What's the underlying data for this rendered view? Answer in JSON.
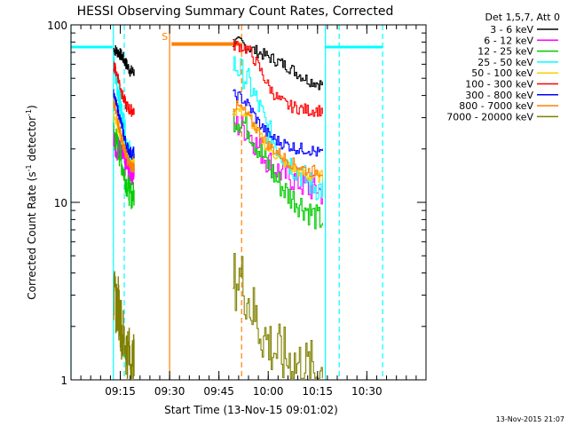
{
  "chart_data": {
    "type": "line",
    "title": "HESSI Observing Summary Count Rates, Corrected",
    "xlabel": "Start Time (13-Nov-15 09:01:02)",
    "ylabel_main": "Corrected Count Rate (s",
    "ylabel_sup1": "-1",
    "ylabel_mid": " detector",
    "ylabel_sup2": "-1",
    "ylabel_end": ")",
    "y_scale": "log",
    "ylim": [
      1,
      100
    ],
    "xlim_minutes": [
      9.0,
      10.8
    ],
    "x_ticks": [
      {
        "label": "09:15",
        "value": 9.25
      },
      {
        "label": "09:30",
        "value": 9.5
      },
      {
        "label": "09:45",
        "value": 9.75
      },
      {
        "label": "10:00",
        "value": 10.0
      },
      {
        "label": "10:15",
        "value": 10.25
      },
      {
        "label": "10:30",
        "value": 10.5
      }
    ],
    "y_ticks": [
      {
        "label": "1",
        "value": 1
      },
      {
        "label": "10",
        "value": 10
      },
      {
        "label": "100",
        "value": 100
      }
    ],
    "legend_header": "Det 1,5,7, Att 0",
    "legend_position": "outside-right",
    "series": [
      {
        "name": "3 - 6 keV",
        "color": "#000000",
        "seg1": [
          [
            9.215,
            73
          ],
          [
            9.24,
            70
          ],
          [
            9.26,
            66
          ],
          [
            9.28,
            60
          ],
          [
            9.3,
            55
          ],
          [
            9.32,
            54
          ]
        ],
        "seg2": [
          [
            9.82,
            80
          ],
          [
            9.86,
            79
          ],
          [
            9.9,
            74
          ],
          [
            9.95,
            70
          ],
          [
            10.0,
            66
          ],
          [
            10.05,
            62
          ],
          [
            10.1,
            58
          ],
          [
            10.15,
            53
          ],
          [
            10.2,
            49
          ],
          [
            10.25,
            47
          ],
          [
            10.275,
            46
          ]
        ]
      },
      {
        "name": "6 - 12 keV",
        "color": "#ff00ff",
        "seg1": [
          [
            9.215,
            22
          ],
          [
            9.24,
            20
          ],
          [
            9.26,
            18
          ],
          [
            9.28,
            16
          ],
          [
            9.3,
            15
          ],
          [
            9.32,
            15
          ]
        ],
        "seg2": [
          [
            9.82,
            27
          ],
          [
            9.86,
            27
          ],
          [
            9.9,
            25
          ],
          [
            9.95,
            20
          ],
          [
            10.0,
            17
          ],
          [
            10.05,
            15
          ],
          [
            10.1,
            14
          ],
          [
            10.15,
            13
          ],
          [
            10.2,
            12
          ],
          [
            10.25,
            12
          ],
          [
            10.275,
            11
          ]
        ]
      },
      {
        "name": "12 - 25 keV",
        "color": "#00cc00",
        "seg1": [
          [
            9.215,
            25
          ],
          [
            9.24,
            20
          ],
          [
            9.26,
            16
          ],
          [
            9.28,
            13
          ],
          [
            9.3,
            11
          ],
          [
            9.32,
            11
          ]
        ],
        "seg2": [
          [
            9.82,
            30
          ],
          [
            9.86,
            29
          ],
          [
            9.9,
            26
          ],
          [
            9.95,
            20
          ],
          [
            10.0,
            16
          ],
          [
            10.05,
            13
          ],
          [
            10.1,
            11
          ],
          [
            10.15,
            10
          ],
          [
            10.2,
            9
          ],
          [
            10.25,
            8
          ],
          [
            10.275,
            8
          ]
        ]
      },
      {
        "name": "25 - 50 keV",
        "color": "#00ffff",
        "seg1": [
          [
            9.215,
            60
          ],
          [
            9.24,
            42
          ],
          [
            9.26,
            30
          ],
          [
            9.28,
            22
          ],
          [
            9.3,
            18
          ],
          [
            9.32,
            17
          ]
        ],
        "seg2": [
          [
            9.82,
            60
          ],
          [
            9.86,
            55
          ],
          [
            9.9,
            47
          ],
          [
            9.95,
            35
          ],
          [
            10.0,
            25
          ],
          [
            10.05,
            20
          ],
          [
            10.1,
            17
          ],
          [
            10.15,
            15
          ],
          [
            10.2,
            13
          ],
          [
            10.25,
            12
          ],
          [
            10.275,
            12
          ]
        ]
      },
      {
        "name": "50 - 100 keV",
        "color": "#ffcc00",
        "seg1": [
          [
            9.215,
            30
          ],
          [
            9.24,
            26
          ],
          [
            9.26,
            22
          ],
          [
            9.28,
            19
          ],
          [
            9.3,
            17
          ],
          [
            9.32,
            17
          ]
        ],
        "seg2": [
          [
            9.82,
            33
          ],
          [
            9.86,
            33
          ],
          [
            9.9,
            30
          ],
          [
            9.95,
            24
          ],
          [
            10.0,
            20
          ],
          [
            10.05,
            18
          ],
          [
            10.1,
            16
          ],
          [
            10.15,
            15
          ],
          [
            10.2,
            14
          ],
          [
            10.25,
            14
          ],
          [
            10.275,
            14
          ]
        ]
      },
      {
        "name": "100 - 300 keV",
        "color": "#ff0000",
        "seg1": [
          [
            9.215,
            60
          ],
          [
            9.24,
            50
          ],
          [
            9.26,
            40
          ],
          [
            9.28,
            35
          ],
          [
            9.3,
            33
          ],
          [
            9.32,
            33
          ]
        ],
        "seg2": [
          [
            9.82,
            77
          ],
          [
            9.86,
            76
          ],
          [
            9.9,
            72
          ],
          [
            9.95,
            58
          ],
          [
            10.0,
            45
          ],
          [
            10.05,
            38
          ],
          [
            10.1,
            35
          ],
          [
            10.15,
            34
          ],
          [
            10.2,
            33
          ],
          [
            10.25,
            33
          ],
          [
            10.275,
            33
          ]
        ]
      },
      {
        "name": "300 - 800 keV",
        "color": "#0000ff",
        "seg1": [
          [
            9.215,
            40
          ],
          [
            9.24,
            32
          ],
          [
            9.26,
            26
          ],
          [
            9.28,
            21
          ],
          [
            9.3,
            19
          ],
          [
            9.32,
            19
          ]
        ],
        "seg2": [
          [
            9.82,
            40
          ],
          [
            9.86,
            39
          ],
          [
            9.9,
            35
          ],
          [
            9.95,
            28
          ],
          [
            10.0,
            24
          ],
          [
            10.05,
            22
          ],
          [
            10.1,
            21
          ],
          [
            10.15,
            20
          ],
          [
            10.2,
            20
          ],
          [
            10.25,
            19
          ],
          [
            10.275,
            19
          ]
        ]
      },
      {
        "name": "800 - 7000 keV",
        "color": "#ff7f00",
        "seg1": [
          [
            9.215,
            36
          ],
          [
            9.24,
            28
          ],
          [
            9.26,
            22
          ],
          [
            9.28,
            18
          ],
          [
            9.3,
            16
          ],
          [
            9.32,
            16
          ]
        ],
        "seg2": [
          [
            9.82,
            35
          ],
          [
            9.86,
            34
          ],
          [
            9.9,
            30
          ],
          [
            9.95,
            25
          ],
          [
            10.0,
            21
          ],
          [
            10.05,
            19
          ],
          [
            10.1,
            17
          ],
          [
            10.15,
            16
          ],
          [
            10.2,
            15
          ],
          [
            10.25,
            15
          ],
          [
            10.275,
            15
          ]
        ]
      },
      {
        "name": "7000 - 20000 keV",
        "color": "#808000",
        "seg1": [
          [
            9.215,
            2.8
          ],
          [
            9.24,
            2.6
          ],
          [
            9.26,
            1.8
          ],
          [
            9.28,
            1.5
          ],
          [
            9.3,
            1.3
          ],
          [
            9.32,
            1.2
          ]
        ],
        "seg2": [
          [
            9.82,
            3.6
          ],
          [
            9.86,
            3.8
          ],
          [
            9.9,
            2.8
          ],
          [
            9.95,
            2.0
          ],
          [
            10.0,
            1.6
          ],
          [
            10.05,
            1.4
          ],
          [
            10.1,
            1.3
          ],
          [
            10.15,
            1.2
          ],
          [
            10.2,
            1.15
          ],
          [
            10.25,
            1.1
          ],
          [
            10.275,
            1.1
          ]
        ]
      }
    ],
    "annotations": {
      "saa_label": "S",
      "saa_bar": {
        "x_start": 9.51,
        "x_end": 9.86,
        "y": 78
      },
      "night_bars": [
        {
          "x_start": 9.0,
          "x_end": 9.21,
          "y": 75
        },
        {
          "x_start": 10.29,
          "x_end": 10.58,
          "y": 75
        }
      ],
      "solid_cyan_x": [
        9.0,
        9.215,
        10.29
      ],
      "dashed_cyan_x": [
        9.27,
        10.36,
        10.58
      ],
      "solid_orange_x": [
        9.5
      ],
      "dashed_orange_x": [
        9.865
      ]
    },
    "footer_date": "13-Nov-2015 21:07"
  }
}
